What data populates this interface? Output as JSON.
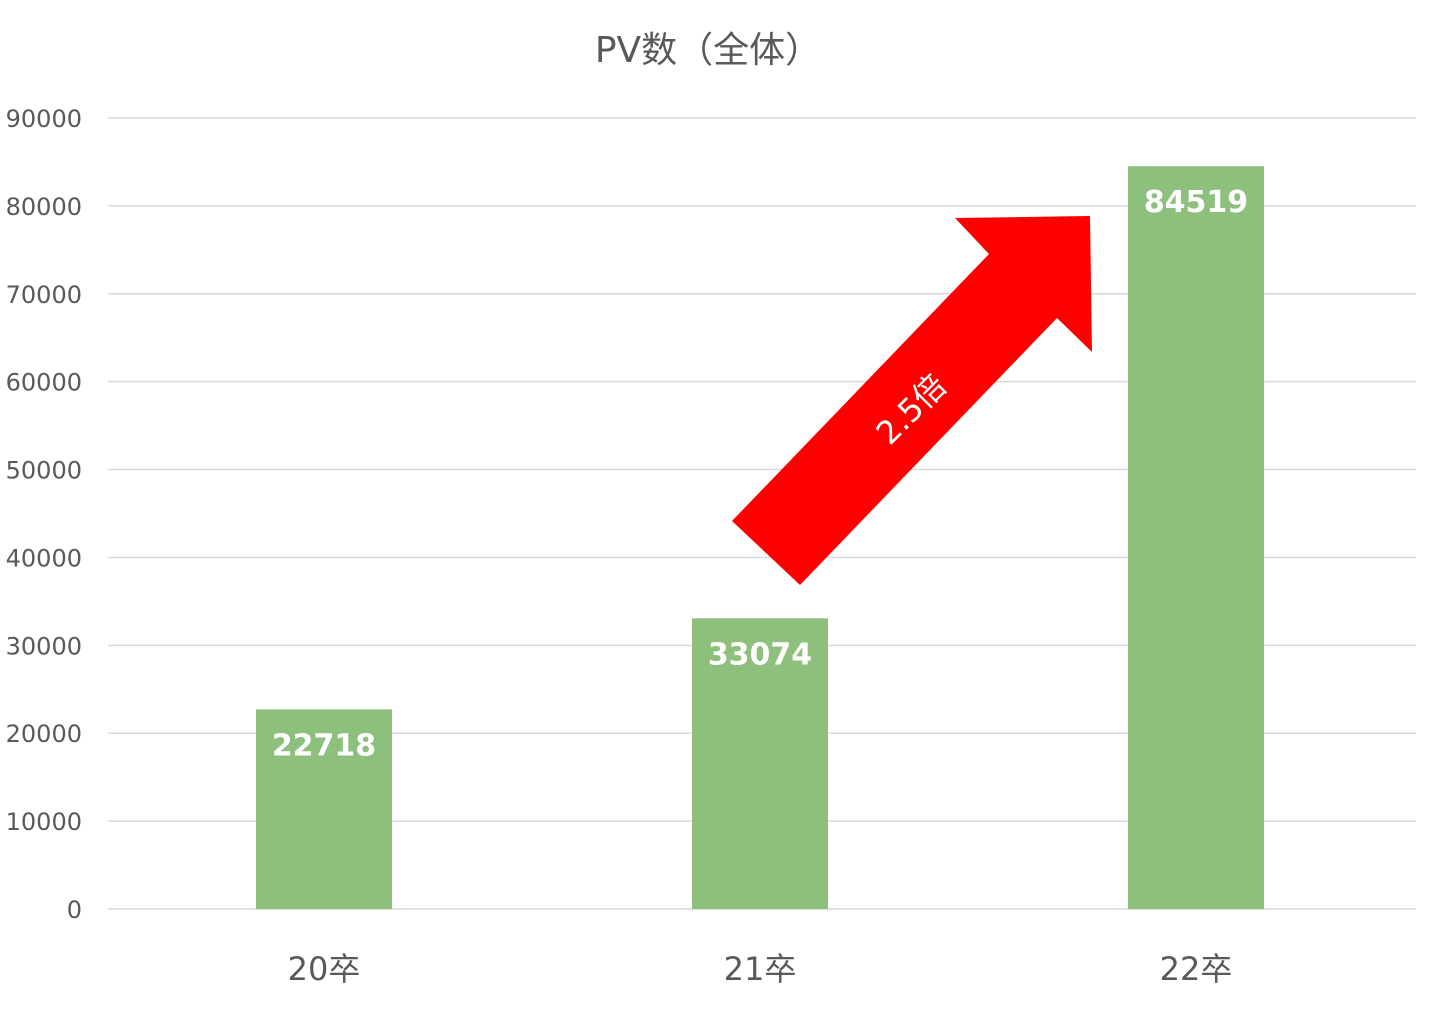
{
  "chart_data": {
    "type": "bar",
    "title": "PV数（全体）",
    "xlabel": "",
    "ylabel": "",
    "categories": [
      "20卒",
      "21卒",
      "22卒"
    ],
    "values": [
      22718,
      33074,
      84519
    ],
    "data_labels": [
      "22718",
      "33074",
      "84519"
    ],
    "ylim": [
      0,
      90000
    ],
    "y_ticks": [
      "0",
      "10000",
      "20000",
      "30000",
      "40000",
      "50000",
      "60000",
      "70000",
      "80000",
      "90000"
    ],
    "grid": true,
    "legend": "none",
    "bar_color": "#8dbf7d",
    "annotation": {
      "type": "arrow",
      "text": "2.5倍",
      "color": "#ff0000",
      "from_category": "21卒",
      "to_category": "22卒"
    }
  }
}
